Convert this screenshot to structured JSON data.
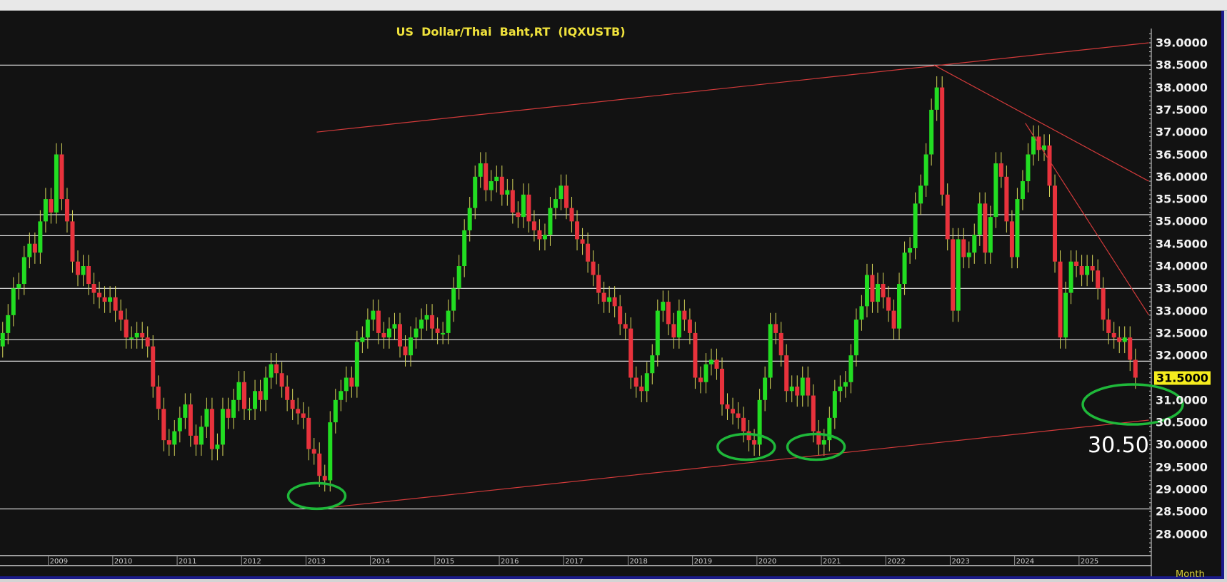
{
  "chart_data": {
    "type": "candlestick",
    "title": "US  Dollar/Thai  Baht,RT  (IQXUSTB)",
    "xlabel": "Month",
    "ylim": [
      27.5,
      39.3
    ],
    "y_ticks": [
      "39.0000",
      "38.5000",
      "38.0000",
      "37.5000",
      "37.0000",
      "36.5000",
      "36.0000",
      "35.5000",
      "35.0000",
      "34.5000",
      "34.0000",
      "33.5000",
      "33.0000",
      "32.5000",
      "32.0000",
      "31.5000",
      "31.0000",
      "30.5000",
      "30.0000",
      "29.5000",
      "29.0000",
      "28.5000",
      "28.0000"
    ],
    "x_ticks": [
      "2009",
      "2010",
      "2011",
      "2012",
      "2013",
      "2014",
      "2015",
      "2016",
      "2017",
      "2018",
      "2019",
      "2020",
      "2021",
      "2022",
      "2023",
      "2024",
      "2025"
    ],
    "last_price": "31.5000",
    "annotation": "30.50",
    "colors": {
      "up": "#22dd22",
      "down": "#e8323c",
      "wick": "#d6d65a",
      "hline": "#e6e6e6",
      "trend": "#d23a3a",
      "circle": "#1fb83a",
      "title": "#f0e23c"
    },
    "horizontal_lines": [
      38.5,
      35.15,
      34.68,
      33.5,
      32.35,
      31.87,
      28.56
    ],
    "trend_lines": [
      {
        "from": [
          "2013-03",
          37.0
        ],
        "to": [
          "2026-02",
          39.0
        ]
      },
      {
        "from": [
          "2013-03",
          28.56
        ],
        "to": [
          "2026-02",
          30.55
        ]
      },
      {
        "from": [
          "2022-10",
          38.5
        ],
        "to": [
          "2026-02",
          35.9
        ]
      },
      {
        "from": [
          "2024-03",
          37.2
        ],
        "to": [
          "2026-02",
          32.9
        ]
      }
    ],
    "highlight_circles": [
      [
        "2013-03",
        28.85
      ],
      [
        "2019-11",
        29.95
      ],
      [
        "2020-12",
        29.95
      ],
      [
        "2025-11",
        30.9
      ]
    ],
    "candles": [
      [
        "2008-04",
        32.5
      ],
      [
        "2008-05",
        32.9
      ],
      [
        "2008-06",
        33.5
      ],
      [
        "2008-07",
        33.6
      ],
      [
        "2008-08",
        34.2
      ],
      [
        "2008-09",
        34.5
      ],
      [
        "2008-10",
        34.3
      ],
      [
        "2008-11",
        35.0
      ],
      [
        "2008-12",
        35.5
      ],
      [
        "2009-01",
        35.2
      ],
      [
        "2009-02",
        36.5
      ],
      [
        "2009-03",
        35.5
      ],
      [
        "2009-04",
        35.0
      ],
      [
        "2009-05",
        34.1
      ],
      [
        "2009-06",
        33.8
      ],
      [
        "2009-07",
        34.0
      ],
      [
        "2009-08",
        33.6
      ],
      [
        "2009-09",
        33.4
      ],
      [
        "2009-10",
        33.3
      ],
      [
        "2009-11",
        33.2
      ],
      [
        "2009-12",
        33.3
      ],
      [
        "2010-01",
        33.0
      ],
      [
        "2010-02",
        32.8
      ],
      [
        "2010-03",
        32.4
      ],
      [
        "2010-04",
        32.4
      ],
      [
        "2010-05",
        32.5
      ],
      [
        "2010-06",
        32.4
      ],
      [
        "2010-07",
        32.2
      ],
      [
        "2010-08",
        31.3
      ],
      [
        "2010-09",
        30.8
      ],
      [
        "2010-10",
        30.1
      ],
      [
        "2010-11",
        30.0
      ],
      [
        "2010-12",
        30.3
      ],
      [
        "2011-01",
        30.6
      ],
      [
        "2011-02",
        30.9
      ],
      [
        "2011-03",
        30.2
      ],
      [
        "2011-04",
        30.0
      ],
      [
        "2011-05",
        30.4
      ],
      [
        "2011-06",
        30.8
      ],
      [
        "2011-07",
        29.9
      ],
      [
        "2011-08",
        30.0
      ],
      [
        "2011-09",
        30.8
      ],
      [
        "2011-10",
        30.6
      ],
      [
        "2011-11",
        31.0
      ],
      [
        "2011-12",
        31.4
      ],
      [
        "2012-01",
        30.8
      ],
      [
        "2012-02",
        30.8
      ],
      [
        "2012-03",
        31.2
      ],
      [
        "2012-04",
        31.0
      ],
      [
        "2012-05",
        31.5
      ],
      [
        "2012-06",
        31.8
      ],
      [
        "2012-07",
        31.6
      ],
      [
        "2012-08",
        31.3
      ],
      [
        "2012-09",
        31.0
      ],
      [
        "2012-10",
        30.8
      ],
      [
        "2012-11",
        30.7
      ],
      [
        "2012-12",
        30.6
      ],
      [
        "2013-01",
        29.9
      ],
      [
        "2013-02",
        29.8
      ],
      [
        "2013-03",
        29.3
      ],
      [
        "2013-04",
        29.2
      ],
      [
        "2013-05",
        30.5
      ],
      [
        "2013-06",
        31.0
      ],
      [
        "2013-07",
        31.2
      ],
      [
        "2013-08",
        31.5
      ],
      [
        "2013-09",
        31.3
      ],
      [
        "2013-10",
        32.3
      ],
      [
        "2013-11",
        32.4
      ],
      [
        "2013-12",
        32.8
      ],
      [
        "2014-01",
        33.0
      ],
      [
        "2014-02",
        32.5
      ],
      [
        "2014-03",
        32.4
      ],
      [
        "2014-04",
        32.6
      ],
      [
        "2014-05",
        32.7
      ],
      [
        "2014-06",
        32.2
      ],
      [
        "2014-07",
        32.0
      ],
      [
        "2014-08",
        32.4
      ],
      [
        "2014-09",
        32.6
      ],
      [
        "2014-10",
        32.8
      ],
      [
        "2014-11",
        32.9
      ],
      [
        "2014-12",
        32.6
      ],
      [
        "2015-01",
        32.5
      ],
      [
        "2015-02",
        32.5
      ],
      [
        "2015-03",
        33.0
      ],
      [
        "2015-04",
        33.5
      ],
      [
        "2015-05",
        34.0
      ],
      [
        "2015-06",
        34.8
      ],
      [
        "2015-07",
        35.3
      ],
      [
        "2015-08",
        36.0
      ],
      [
        "2015-09",
        36.3
      ],
      [
        "2015-10",
        35.7
      ],
      [
        "2015-11",
        35.9
      ],
      [
        "2015-12",
        36.0
      ],
      [
        "2016-01",
        35.6
      ],
      [
        "2016-02",
        35.7
      ],
      [
        "2016-03",
        35.2
      ],
      [
        "2016-04",
        35.1
      ],
      [
        "2016-05",
        35.6
      ],
      [
        "2016-06",
        35.0
      ],
      [
        "2016-07",
        34.8
      ],
      [
        "2016-08",
        34.6
      ],
      [
        "2016-09",
        34.7
      ],
      [
        "2016-10",
        35.3
      ],
      [
        "2016-11",
        35.5
      ],
      [
        "2016-12",
        35.8
      ],
      [
        "2017-01",
        35.3
      ],
      [
        "2017-02",
        35.0
      ],
      [
        "2017-03",
        34.6
      ],
      [
        "2017-04",
        34.5
      ],
      [
        "2017-05",
        34.1
      ],
      [
        "2017-06",
        33.8
      ],
      [
        "2017-07",
        33.4
      ],
      [
        "2017-08",
        33.2
      ],
      [
        "2017-09",
        33.3
      ],
      [
        "2017-10",
        33.1
      ],
      [
        "2017-11",
        32.7
      ],
      [
        "2017-12",
        32.6
      ],
      [
        "2018-01",
        31.5
      ],
      [
        "2018-02",
        31.3
      ],
      [
        "2018-03",
        31.2
      ],
      [
        "2018-04",
        31.6
      ],
      [
        "2018-05",
        32.0
      ],
      [
        "2018-06",
        33.0
      ],
      [
        "2018-07",
        33.2
      ],
      [
        "2018-08",
        32.7
      ],
      [
        "2018-09",
        32.4
      ],
      [
        "2018-10",
        33.0
      ],
      [
        "2018-11",
        32.8
      ],
      [
        "2018-12",
        32.5
      ],
      [
        "2019-01",
        31.5
      ],
      [
        "2019-02",
        31.4
      ],
      [
        "2019-03",
        31.8
      ],
      [
        "2019-04",
        31.9
      ],
      [
        "2019-05",
        31.7
      ],
      [
        "2019-06",
        30.9
      ],
      [
        "2019-07",
        30.8
      ],
      [
        "2019-08",
        30.7
      ],
      [
        "2019-09",
        30.6
      ],
      [
        "2019-10",
        30.3
      ],
      [
        "2019-11",
        30.1
      ],
      [
        "2019-12",
        30.0
      ],
      [
        "2020-01",
        31.0
      ],
      [
        "2020-02",
        31.5
      ],
      [
        "2020-03",
        32.7
      ],
      [
        "2020-04",
        32.5
      ],
      [
        "2020-05",
        32.0
      ],
      [
        "2020-06",
        31.2
      ],
      [
        "2020-07",
        31.3
      ],
      [
        "2020-08",
        31.1
      ],
      [
        "2020-09",
        31.5
      ],
      [
        "2020-10",
        31.1
      ],
      [
        "2020-11",
        30.3
      ],
      [
        "2020-12",
        30.0
      ],
      [
        "2021-01",
        30.1
      ],
      [
        "2021-02",
        30.6
      ],
      [
        "2021-03",
        31.2
      ],
      [
        "2021-04",
        31.3
      ],
      [
        "2021-05",
        31.4
      ],
      [
        "2021-06",
        32.0
      ],
      [
        "2021-07",
        32.8
      ],
      [
        "2021-08",
        33.1
      ],
      [
        "2021-09",
        33.8
      ],
      [
        "2021-10",
        33.2
      ],
      [
        "2021-11",
        33.6
      ],
      [
        "2021-12",
        33.3
      ],
      [
        "2022-01",
        33.0
      ],
      [
        "2022-02",
        32.6
      ],
      [
        "2022-03",
        33.6
      ],
      [
        "2022-04",
        34.3
      ],
      [
        "2022-05",
        34.4
      ],
      [
        "2022-06",
        35.4
      ],
      [
        "2022-07",
        35.8
      ],
      [
        "2022-08",
        36.5
      ],
      [
        "2022-09",
        37.5
      ],
      [
        "2022-10",
        38.0
      ],
      [
        "2022-11",
        35.6
      ],
      [
        "2022-12",
        34.6
      ],
      [
        "2023-01",
        33.0
      ],
      [
        "2023-02",
        34.6
      ],
      [
        "2023-03",
        34.2
      ],
      [
        "2023-04",
        34.3
      ],
      [
        "2023-05",
        34.7
      ],
      [
        "2023-06",
        35.4
      ],
      [
        "2023-07",
        34.3
      ],
      [
        "2023-08",
        35.1
      ],
      [
        "2023-09",
        36.3
      ],
      [
        "2023-10",
        36.0
      ],
      [
        "2023-11",
        35.0
      ],
      [
        "2023-12",
        34.2
      ],
      [
        "2024-01",
        35.5
      ],
      [
        "2024-02",
        35.9
      ],
      [
        "2024-03",
        36.5
      ],
      [
        "2024-04",
        36.9
      ],
      [
        "2024-05",
        36.6
      ],
      [
        "2024-06",
        36.7
      ],
      [
        "2024-07",
        35.8
      ],
      [
        "2024-08",
        34.1
      ],
      [
        "2024-09",
        32.4
      ],
      [
        "2024-10",
        33.4
      ],
      [
        "2024-11",
        34.1
      ],
      [
        "2024-12",
        34.0
      ],
      [
        "2025-01",
        33.8
      ],
      [
        "2025-02",
        34.0
      ],
      [
        "2025-03",
        33.9
      ],
      [
        "2025-04",
        33.5
      ],
      [
        "2025-05",
        32.8
      ],
      [
        "2025-06",
        32.5
      ],
      [
        "2025-07",
        32.4
      ],
      [
        "2025-08",
        32.3
      ],
      [
        "2025-09",
        32.4
      ],
      [
        "2025-10",
        31.9
      ],
      [
        "2025-11",
        31.5
      ]
    ]
  }
}
